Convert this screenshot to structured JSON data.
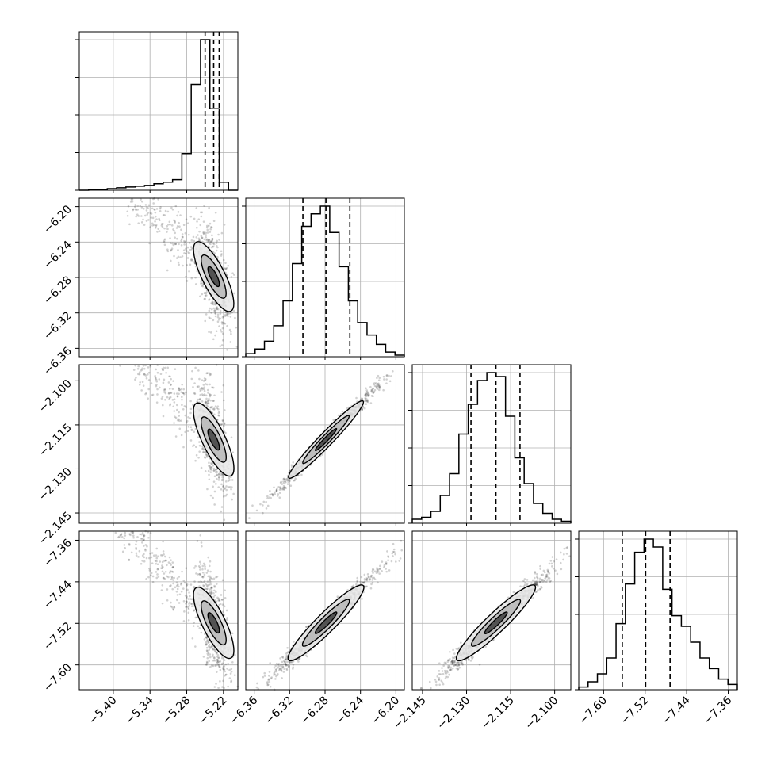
{
  "chart_data": {
    "type": "corner",
    "grid": true,
    "parameters": [
      {
        "ticks": [
          -5.4,
          -5.34,
          -5.28,
          -5.22
        ],
        "tick_labels": [
          "−5.40",
          "−5.34",
          "−5.28",
          "−5.22"
        ],
        "range": [
          -5.4555,
          -5.1965
        ]
      },
      {
        "ticks": [
          -6.36,
          -6.32,
          -6.28,
          -6.24,
          -6.2
        ],
        "tick_labels": [
          "−6.36",
          "−6.32",
          "−6.28",
          "−6.24",
          "−6.20"
        ],
        "range": [
          -6.3695,
          -6.1905
        ]
      },
      {
        "ticks": [
          -2.145,
          -2.13,
          -2.115,
          -2.1
        ],
        "tick_labels": [
          "−2.145",
          "−2.130",
          "−2.115",
          "−2.100"
        ],
        "range": [
          -2.1485,
          -2.0945
        ]
      },
      {
        "ticks": [
          -7.6,
          -7.52,
          -7.44,
          -7.36
        ],
        "tick_labels": [
          "−7.60",
          "−7.52",
          "−7.44",
          "−7.36"
        ],
        "range": [
          -7.6478,
          -7.3425
        ]
      }
    ],
    "histograms": [
      {
        "counts": [
          0,
          1,
          1,
          2,
          3,
          4,
          5,
          6,
          8,
          10,
          13,
          45,
          130,
          185,
          100,
          10,
          0
        ],
        "quantiles": [
          -5.25,
          -5.236,
          -5.227
        ]
      },
      {
        "counts": [
          2,
          5,
          10,
          20,
          36,
          60,
          84,
          92,
          97,
          80,
          58,
          36,
          22,
          14,
          8,
          3,
          1
        ],
        "quantiles": [
          -6.305,
          -6.279,
          -6.252
        ]
      },
      {
        "counts": [
          2,
          3,
          6,
          14,
          25,
          45,
          60,
          72,
          76,
          74,
          54,
          33,
          20,
          10,
          5,
          2,
          1
        ],
        "quantiles": [
          -2.1285,
          -2.12,
          -2.1118
        ]
      },
      {
        "counts": [
          1,
          3,
          6,
          12,
          25,
          40,
          52,
          57,
          54,
          38,
          28,
          24,
          18,
          12,
          8,
          4,
          2
        ],
        "quantiles": [
          -7.564,
          -7.519,
          -7.472
        ]
      }
    ],
    "scatter_pairs": [
      {
        "row": 1,
        "col": 0,
        "corr": -0.6
      },
      {
        "row": 2,
        "col": 0,
        "corr": -0.6
      },
      {
        "row": 2,
        "col": 1,
        "corr": 0.99
      },
      {
        "row": 3,
        "col": 0,
        "corr": -0.6
      },
      {
        "row": 3,
        "col": 1,
        "corr": 0.98
      },
      {
        "row": 3,
        "col": 2,
        "corr": 0.98
      }
    ],
    "colors": {
      "line": "#000000",
      "grid": "#b0b0b0",
      "density": "#000000",
      "background": "#ffffff"
    }
  }
}
